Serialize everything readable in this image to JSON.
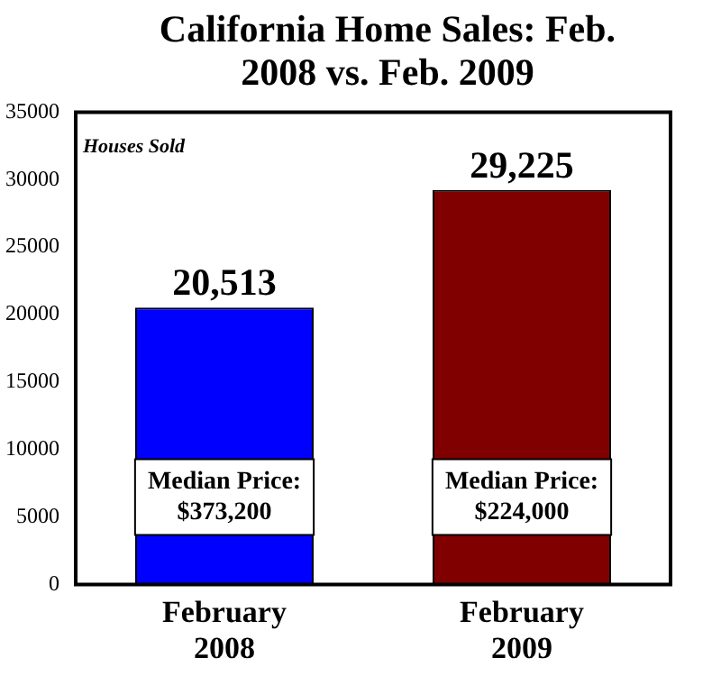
{
  "chart_data": {
    "type": "bar",
    "title": "California Home Sales: Feb. 2008 vs. Feb. 2009",
    "ylabel": "Houses Sold",
    "categories": [
      "February 2008",
      "February 2009"
    ],
    "values": [
      20513,
      29225
    ],
    "colors": [
      "#0000ff",
      "#800000"
    ],
    "ylim": [
      0,
      35000
    ],
    "yticks": [
      0,
      5000,
      10000,
      15000,
      20000,
      25000,
      30000,
      35000
    ],
    "value_labels": [
      "20,513",
      "29,225"
    ],
    "grid": false,
    "legend": false,
    "annotations": [
      "Median Price: $373,200",
      "Median Price: $224,000"
    ]
  }
}
